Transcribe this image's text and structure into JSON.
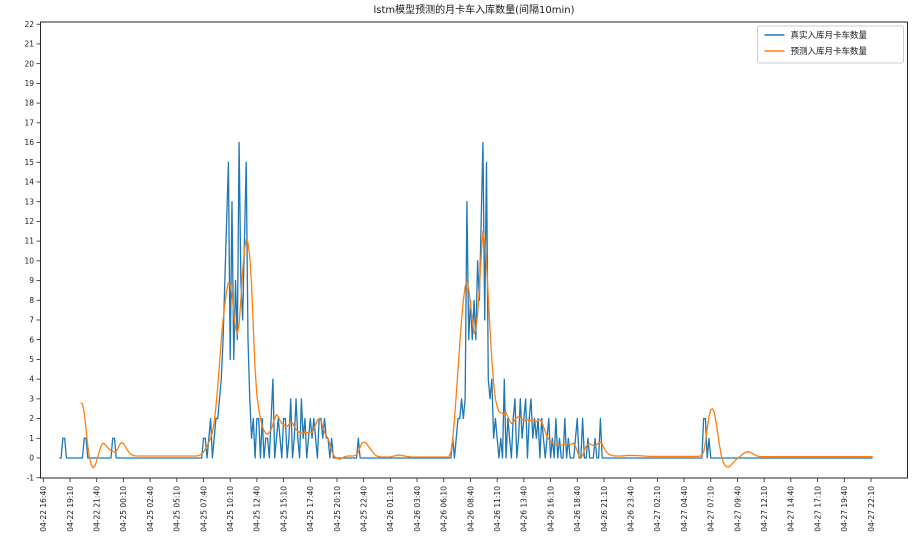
{
  "title": "lstm模型预测的月卡车入库数量(间隔10min)",
  "legend": {
    "items": [
      {
        "label": "真实入库月卡车数量",
        "color": "#1f77b4"
      },
      {
        "label": "预测入库月卡车数量",
        "color": "#ff7f0e"
      }
    ],
    "position": "upper right"
  },
  "chart_data": {
    "type": "line",
    "title": "lstm模型预测的月卡车入库数量(间隔10min)",
    "xlabel": "",
    "ylabel": "",
    "ylim": [
      -1,
      22
    ],
    "y_ticks": [
      -1,
      0,
      1,
      2,
      3,
      4,
      5,
      6,
      7,
      8,
      9,
      10,
      11,
      12,
      13,
      14,
      15,
      16,
      17,
      18,
      19,
      20,
      21,
      22
    ],
    "grid": false,
    "legend_position": "upper right",
    "points_per_tick": 15,
    "x_interval_minutes": 10,
    "x_tick_labels": [
      "04-22 16:40",
      "04-22 19:10",
      "04-22 21:40",
      "04-25 00:10",
      "04-25 02:40",
      "04-25 05:10",
      "04-25 07:40",
      "04-25 10:10",
      "04-25 12:40",
      "04-25 15:10",
      "04-25 17:40",
      "04-25 20:10",
      "04-25 22:40",
      "04-26 01:10",
      "04-26 03:40",
      "04-26 06:10",
      "04-26 08:40",
      "04-26 11:10",
      "04-26 13:40",
      "04-26 16:10",
      "04-26 18:40",
      "04-26 21:10",
      "04-26 23:40",
      "04-27 02:10",
      "04-27 04:40",
      "04-27 07:10",
      "04-27 09:40",
      "04-27 12:10",
      "04-27 14:40",
      "04-27 17:10",
      "04-27 19:40",
      "04-27 22:10"
    ],
    "series": [
      {
        "name": "真实入库月卡车数量",
        "color": "#1f77b4",
        "values": [
          null,
          null,
          null,
          null,
          null,
          null,
          null,
          null,
          null,
          0,
          0,
          1,
          1,
          0,
          0,
          0,
          0,
          0,
          0,
          0,
          0,
          0,
          0,
          1,
          1,
          0,
          0,
          0,
          0,
          0,
          0,
          0,
          0,
          0,
          0,
          0,
          0,
          0,
          0,
          1,
          1,
          0,
          0,
          0,
          0,
          0,
          0,
          0,
          0,
          0,
          0,
          0,
          0,
          0,
          0,
          0,
          0,
          0,
          0,
          0,
          0,
          0,
          0,
          0,
          0,
          0,
          0,
          0,
          0,
          0,
          0,
          0,
          0,
          0,
          0,
          0,
          0,
          0,
          0,
          0,
          0,
          0,
          0,
          0,
          0,
          0,
          0,
          0,
          0,
          0,
          1,
          1,
          0,
          1,
          2,
          0,
          1,
          2,
          2,
          3,
          4,
          6,
          9,
          12,
          15,
          5,
          13,
          5,
          9,
          6,
          16,
          9,
          7,
          11,
          15,
          6,
          3,
          1,
          2,
          0,
          2,
          2,
          0,
          2,
          0,
          1,
          1,
          0,
          2,
          4,
          0,
          1,
          2,
          1,
          0,
          2,
          2,
          0,
          1,
          3,
          0,
          1,
          3,
          1,
          0,
          3,
          1,
          2,
          0,
          1,
          2,
          1,
          2,
          1,
          0,
          2,
          2,
          1,
          2,
          1,
          1,
          0,
          1,
          0,
          0,
          0,
          0,
          0,
          0,
          0,
          0,
          0,
          0,
          0,
          0,
          0,
          0,
          1,
          0,
          0,
          0,
          0,
          0,
          0,
          0,
          0,
          0,
          0,
          0,
          0,
          0,
          0,
          0,
          0,
          0,
          0,
          0,
          0,
          0,
          0,
          0,
          0,
          0,
          0,
          0,
          0,
          0,
          0,
          0,
          0,
          0,
          0,
          0,
          0,
          0,
          0,
          0,
          0,
          0,
          0,
          0,
          0,
          0,
          0,
          0,
          0,
          0,
          0,
          0,
          0,
          1,
          0,
          1,
          2,
          2,
          3,
          2,
          3,
          13,
          6,
          8,
          6,
          8,
          6,
          10,
          8,
          12,
          16,
          7,
          15,
          4,
          3,
          4,
          1,
          2,
          1,
          0,
          1,
          0,
          4,
          0,
          2,
          1,
          0,
          2,
          3,
          0,
          1,
          3,
          1,
          2,
          3,
          0,
          2,
          3,
          1,
          2,
          1,
          2,
          0,
          2,
          1,
          0,
          1,
          2,
          0,
          1,
          0,
          2,
          0,
          1,
          0,
          0,
          2,
          0,
          1,
          0,
          0,
          0,
          1,
          2,
          0,
          0,
          2,
          0,
          0,
          1,
          0,
          0,
          0,
          1,
          0,
          0,
          2,
          0,
          0,
          0,
          0,
          0,
          0,
          0,
          0,
          0,
          0,
          0,
          0,
          0,
          0,
          0,
          0,
          0,
          0,
          0,
          0,
          0,
          0,
          0,
          0,
          0,
          0,
          0,
          0,
          0,
          0,
          0,
          0,
          0,
          0,
          0,
          0,
          0,
          0,
          0,
          0,
          0,
          0,
          0,
          0,
          0,
          0,
          0,
          0,
          0,
          0,
          0,
          0,
          0,
          0,
          0,
          0,
          0,
          2,
          2,
          0,
          1,
          0,
          0,
          0,
          0,
          0,
          0,
          0,
          0,
          0,
          0,
          0,
          0,
          0,
          0,
          0,
          0,
          0,
          0,
          0,
          0,
          0,
          0,
          0,
          0,
          0,
          0,
          0,
          0,
          0,
          0,
          0,
          0,
          0,
          0,
          0,
          0,
          0,
          0,
          0,
          0,
          0,
          0,
          0,
          0,
          0,
          0,
          0,
          0,
          0,
          0,
          0,
          0,
          0,
          0,
          0,
          0,
          0,
          0,
          0,
          0,
          0,
          0,
          0,
          0,
          0,
          0,
          0,
          0,
          0,
          0,
          0,
          0,
          0,
          0,
          0,
          0,
          0,
          0,
          0,
          0,
          0,
          0,
          0,
          0,
          0,
          0,
          0,
          0,
          0,
          0,
          0,
          0
        ]
      },
      {
        "name": "预测入库月卡车数量",
        "color": "#ff7f0e",
        "values": [
          null,
          null,
          null,
          null,
          null,
          null,
          null,
          null,
          null,
          null,
          null,
          null,
          null,
          null,
          null,
          null,
          null,
          null,
          null,
          null,
          null,
          2.8,
          2.75,
          2.3,
          1.5,
          0.6,
          0,
          -0.35,
          -0.5,
          -0.4,
          -0.15,
          0.2,
          0.5,
          0.7,
          0.75,
          0.65,
          0.55,
          0.45,
          0.38,
          0.33,
          0.3,
          0.35,
          0.5,
          0.68,
          0.78,
          0.75,
          0.6,
          0.45,
          0.3,
          0.2,
          0.15,
          0.12,
          0.1,
          0.1,
          0.1,
          0.1,
          0.1,
          0.1,
          0.1,
          0.1,
          0.1,
          0.1,
          0.1,
          0.1,
          0.1,
          0.1,
          0.1,
          0.1,
          0.1,
          0.1,
          0.1,
          0.1,
          0.1,
          0.1,
          0.1,
          0.1,
          0.1,
          0.1,
          0.1,
          0.1,
          0.1,
          0.1,
          0.1,
          0.1,
          0.1,
          0.1,
          0.1,
          0.12,
          0.15,
          0.2,
          0.3,
          0.45,
          0.6,
          0.8,
          1,
          1.3,
          1.8,
          2.6,
          3.6,
          4.8,
          6,
          7,
          7.8,
          8.5,
          8.9,
          8.8,
          8.3,
          7.4,
          6.6,
          6.3,
          6.8,
          8,
          9.5,
          10.6,
          11.1,
          10.9,
          10.2,
          8.8,
          6.6,
          4.5,
          3.2,
          2.5,
          2,
          1.6,
          1.4,
          1.25,
          1.2,
          1.3,
          1.45,
          1.7,
          2,
          2.2,
          2.1,
          1.9,
          1.75,
          1.7,
          1.62,
          1.6,
          1.7,
          1.8,
          1.78,
          1.6,
          1.45,
          1.35,
          1.3,
          1.27,
          1.25,
          1.28,
          1.3,
          1.3,
          1.33,
          1.3,
          1.45,
          1.7,
          1.92,
          2,
          1.9,
          1.6,
          1.3,
          1.12,
          1,
          0.7,
          0.4,
          0.15,
          0.05,
          0,
          -0.05,
          -0.05,
          0,
          0.05,
          0.08,
          0.1,
          0.1,
          0.1,
          0.1,
          0.12,
          0.15,
          0.3,
          0.55,
          0.75,
          0.8,
          0.78,
          0.68,
          0.55,
          0.45,
          0.3,
          0.2,
          0.12,
          0.08,
          0.06,
          0.05,
          0.05,
          0.05,
          0.05,
          0.05,
          0.05,
          0.08,
          0.1,
          0.12,
          0.14,
          0.15,
          0.14,
          0.12,
          0.1,
          0.08,
          0.07,
          0.06,
          0.05,
          0.05,
          0.05,
          0.05,
          0.05,
          0.05,
          0.05,
          0.05,
          0.05,
          0.05,
          0.05,
          0.05,
          0.05,
          0.05,
          0.05,
          0.05,
          0.05,
          0.05,
          0.05,
          0.05,
          0.05,
          0.1,
          0.3,
          0.9,
          2,
          3.2,
          4.5,
          5.8,
          7,
          8,
          8.7,
          8.95,
          8.6,
          7.8,
          7,
          6.3,
          6.5,
          7.3,
          8.6,
          10.2,
          11.5,
          11,
          9.8,
          8.2,
          6.5,
          5,
          3.8,
          3,
          2.6,
          2.35,
          2.3,
          2.25,
          2.2,
          2.3,
          2.1,
          1.9,
          1.75,
          1.8,
          1.95,
          2.05,
          2.1,
          2.05,
          1.95,
          1.9,
          1.92,
          1.95,
          1.9,
          1.9,
          1.92,
          1.9,
          1.85,
          1.9,
          1.95,
          1.85,
          1.6,
          1.35,
          1.1,
          0.95,
          0.85,
          0.78,
          0.72,
          0.68,
          0.66,
          0.65,
          0.64,
          0.66,
          0.7,
          0.74,
          0.72,
          0.68,
          0.72,
          0.75,
          0.6,
          0.35,
          0.1,
          0,
          0.12,
          0.4,
          0.6,
          0.7,
          0.72,
          0.68,
          0.64,
          0.62,
          0.68,
          0.76,
          0.8,
          0.7,
          0.52,
          0.35,
          0.25,
          0.18,
          0.14,
          0.12,
          0.1,
          0.1,
          0.1,
          0.1,
          0.1,
          0.11,
          0.12,
          0.13,
          0.13,
          0.13,
          0.13,
          0.13,
          0.12,
          0.12,
          0.12,
          0.11,
          0.1,
          0.1,
          0.09,
          0.08,
          0.08,
          0.08,
          0.08,
          0.08,
          0.08,
          0.08,
          0.08,
          0.08,
          0.08,
          0.08,
          0.08,
          0.08,
          0.08,
          0.08,
          0.08,
          0.08,
          0.08,
          0.08,
          0.08,
          0.08,
          0.08,
          0.08,
          0.08,
          0.08,
          0.08,
          0.08,
          0.08,
          0.08,
          0.1,
          0.15,
          0.3,
          0.8,
          1.5,
          2.1,
          2.45,
          2.5,
          2.3,
          1.8,
          1.2,
          0.6,
          0.1,
          -0.2,
          -0.38,
          -0.45,
          -0.45,
          -0.4,
          -0.3,
          -0.2,
          -0.1,
          -0.02,
          0.05,
          0.12,
          0.2,
          0.26,
          0.3,
          0.32,
          0.3,
          0.26,
          0.2,
          0.15,
          0.1,
          0.08,
          0.07,
          0.07,
          0.07,
          0.07,
          0.07,
          0.07,
          0.07,
          0.07,
          0.07,
          0.07,
          0.07,
          0.07,
          0.07,
          0.07,
          0.07,
          0.07,
          0.07,
          0.07,
          0.07,
          0.07,
          0.07,
          0.07,
          0.07,
          0.07,
          0.07,
          0.07,
          0.07,
          0.07,
          0.07,
          0.07,
          0.07,
          0.07,
          0.07,
          0.07,
          0.07,
          0.07,
          0.07,
          0.07,
          0.07,
          0.07,
          0.07,
          0.07,
          0.07,
          0.07,
          0.07,
          0.07,
          0.07,
          0.07,
          0.07,
          0.07,
          0.07,
          0.07,
          0.07,
          0.07,
          0.07,
          0.07,
          0.07,
          0.07,
          0.07,
          0.07,
          0.07,
          0.07,
          0.07,
          0.07
        ]
      }
    ]
  }
}
